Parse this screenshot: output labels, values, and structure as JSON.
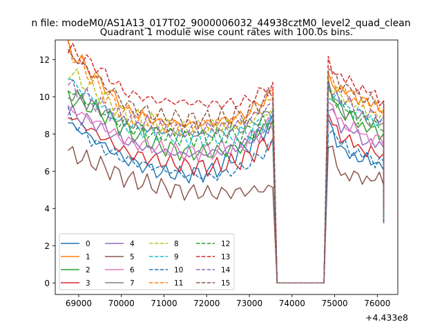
{
  "chart_data": {
    "type": "line",
    "suptitle": "n file: modeM0/AS1A13_017T02_9000006032_44938cztM0_level2_quad_clean",
    "title": "Quadrant 1 module wise count rates with 100.0s bins.",
    "offset_text": "+4.433e8",
    "xlim": [
      68450,
      76480
    ],
    "ylim": [
      -0.62,
      13.05
    ],
    "xticks": [
      69000,
      70000,
      71000,
      72000,
      73000,
      74000,
      75000,
      76000
    ],
    "xtick_labels": [
      "69000",
      "70000",
      "71000",
      "72000",
      "73000",
      "74000",
      "75000",
      "76000"
    ],
    "yticks": [
      0,
      2,
      4,
      6,
      8,
      10,
      12
    ],
    "ytick_labels": [
      "0",
      "2",
      "4",
      "6",
      "8",
      "10",
      "12"
    ],
    "legend_location": "lower-left",
    "legend_columns": 4,
    "x_segments": [
      [
        68750,
        73550
      ],
      [
        73650,
        74750
      ],
      [
        74850,
        76150
      ]
    ],
    "series": [
      {
        "name": "0",
        "color": "#1f77b4",
        "dash": "solid",
        "seg1": [
          8.6,
          7.6,
          6.6,
          6.0,
          5.8,
          6.0,
          7.2,
          8.6
        ],
        "seg3": [
          8.8,
          7.0,
          6.8,
          6.5,
          6.4
        ]
      },
      {
        "name": "1",
        "color": "#ff7f0e",
        "dash": "solid",
        "seg1": [
          12.6,
          11.0,
          9.3,
          8.7,
          8.5,
          8.6,
          9.0,
          10.2
        ],
        "seg3": [
          11.0,
          10.3,
          10.1,
          9.6,
          9.4
        ]
      },
      {
        "name": "2",
        "color": "#2ca02c",
        "dash": "solid",
        "seg1": [
          10.0,
          9.3,
          8.2,
          7.4,
          7.0,
          7.0,
          7.3,
          8.8
        ],
        "seg3": [
          10.6,
          9.0,
          8.7,
          8.2,
          8.0
        ]
      },
      {
        "name": "3",
        "color": "#d62728",
        "dash": "solid",
        "seg1": [
          9.0,
          8.0,
          7.0,
          6.6,
          6.3,
          6.2,
          6.6,
          7.8
        ],
        "seg3": [
          9.0,
          7.8,
          7.4,
          7.0,
          6.8
        ]
      },
      {
        "name": "4",
        "color": "#9467bd",
        "dash": "solid",
        "seg1": [
          9.2,
          8.5,
          7.6,
          7.1,
          6.9,
          7.0,
          7.4,
          8.6
        ],
        "seg3": [
          9.4,
          8.4,
          8.0,
          7.5,
          7.3
        ]
      },
      {
        "name": "5",
        "color": "#8c564b",
        "dash": "solid",
        "seg1": [
          7.0,
          6.4,
          5.6,
          5.2,
          4.9,
          4.8,
          4.9,
          5.1
        ],
        "seg3": [
          7.4,
          5.8,
          5.7,
          5.6,
          5.5
        ]
      },
      {
        "name": "6",
        "color": "#e377c2",
        "dash": "solid",
        "seg1": [
          9.4,
          8.6,
          7.6,
          7.3,
          7.0,
          7.1,
          7.5,
          8.6
        ],
        "seg3": [
          9.6,
          8.6,
          8.2,
          7.8,
          7.6
        ]
      },
      {
        "name": "7",
        "color": "#7f7f7f",
        "dash": "solid",
        "seg1": [
          10.2,
          9.4,
          8.6,
          8.2,
          8.0,
          8.0,
          8.3,
          9.2
        ],
        "seg3": [
          10.4,
          9.3,
          9.0,
          8.7,
          8.5
        ]
      },
      {
        "name": "8",
        "color": "#bcbd22",
        "dash": "dashed",
        "seg1": [
          11.4,
          10.2,
          9.0,
          8.6,
          8.3,
          8.4,
          8.6,
          9.3
        ],
        "seg3": [
          10.4,
          10.0,
          9.6,
          9.2,
          9.0
        ]
      },
      {
        "name": "9",
        "color": "#17becf",
        "dash": "dashed",
        "seg1": [
          11.0,
          9.6,
          8.4,
          8.0,
          7.8,
          7.8,
          8.0,
          8.8
        ],
        "seg3": [
          10.2,
          9.6,
          9.2,
          8.8,
          8.6
        ]
      },
      {
        "name": "10",
        "color": "#1f77b4",
        "dash": "dashed",
        "seg1": [
          9.0,
          7.4,
          6.6,
          6.2,
          5.8,
          5.7,
          6.2,
          7.4
        ],
        "seg3": [
          8.4,
          7.4,
          7.0,
          6.7,
          6.5
        ]
      },
      {
        "name": "11",
        "color": "#ff7f0e",
        "dash": "dashed",
        "seg1": [
          12.6,
          10.6,
          9.0,
          8.6,
          8.4,
          8.5,
          8.8,
          10.0
        ],
        "seg3": [
          11.2,
          10.2,
          9.8,
          9.4,
          9.2
        ]
      },
      {
        "name": "12",
        "color": "#2ca02c",
        "dash": "dashed",
        "seg1": [
          10.4,
          9.4,
          8.4,
          8.0,
          7.8,
          7.8,
          8.0,
          8.8
        ],
        "seg3": [
          10.4,
          9.4,
          9.0,
          8.6,
          8.4
        ]
      },
      {
        "name": "13",
        "color": "#d62728",
        "dash": "dashed",
        "seg1": [
          12.6,
          11.6,
          10.2,
          9.8,
          9.7,
          9.6,
          9.7,
          10.6
        ],
        "seg3": [
          11.8,
          11.0,
          10.6,
          10.2,
          9.8
        ]
      },
      {
        "name": "14",
        "color": "#9467bd",
        "dash": "dashed",
        "seg1": [
          10.6,
          9.6,
          8.8,
          8.4,
          8.2,
          8.3,
          8.6,
          9.6
        ],
        "seg3": [
          10.6,
          9.8,
          9.4,
          9.0,
          8.8
        ]
      },
      {
        "name": "15",
        "color": "#8c564b",
        "dash": "dashed",
        "seg1": [
          12.4,
          11.0,
          9.6,
          9.0,
          8.8,
          8.8,
          9.0,
          10.2
        ],
        "seg3": [
          11.6,
          10.6,
          10.2,
          9.8,
          9.6
        ]
      }
    ]
  }
}
